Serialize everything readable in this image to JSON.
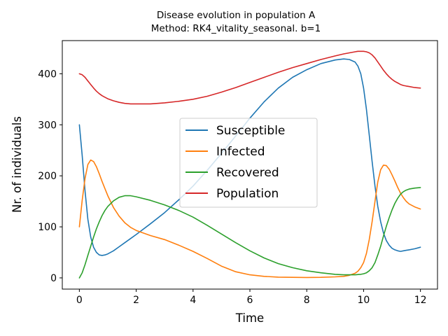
{
  "chart_data": {
    "type": "line",
    "title": "Disease evolution in population A",
    "subtitle": "Method: RK4_vitality_seasonal. b=1",
    "xlabel": "Time",
    "ylabel": "Nr. of individuals",
    "xlim": [
      -0.6,
      12.6
    ],
    "ylim": [
      -22,
      465
    ],
    "xticks": [
      0,
      2,
      4,
      6,
      8,
      10,
      12
    ],
    "yticks": [
      0,
      100,
      200,
      300,
      400
    ],
    "grid": false,
    "legend_position": "center",
    "series": [
      {
        "name": "Susceptible",
        "color": "#1f77b4",
        "x": [
          0,
          0.1,
          0.2,
          0.3,
          0.4,
          0.5,
          0.6,
          0.7,
          0.8,
          0.9,
          1.0,
          1.2,
          1.4,
          1.6,
          1.8,
          2.0,
          2.5,
          3.0,
          3.5,
          4.0,
          4.5,
          5.0,
          5.5,
          6.0,
          6.5,
          7.0,
          7.5,
          8.0,
          8.5,
          9.0,
          9.3,
          9.5,
          9.7,
          9.8,
          9.9,
          10.0,
          10.1,
          10.2,
          10.3,
          10.4,
          10.5,
          10.6,
          10.7,
          10.8,
          10.9,
          11.0,
          11.1,
          11.2,
          11.3,
          11.4,
          11.5,
          11.6,
          11.8,
          12.0
        ],
        "values": [
          300,
          240,
          170,
          115,
          80,
          60,
          50,
          45,
          44,
          45,
          47,
          53,
          61,
          69,
          77,
          85,
          106,
          128,
          153,
          180,
          211,
          244,
          278,
          313,
          345,
          372,
          393,
          408,
          420,
          427,
          429,
          428,
          423,
          415,
          400,
          372,
          330,
          280,
          228,
          180,
          140,
          110,
          88,
          73,
          64,
          58,
          55,
          53,
          52,
          53,
          54,
          55,
          57,
          60
        ]
      },
      {
        "name": "Infected",
        "color": "#ff7f0e",
        "x": [
          0,
          0.1,
          0.2,
          0.3,
          0.4,
          0.5,
          0.6,
          0.7,
          0.8,
          0.9,
          1.0,
          1.2,
          1.4,
          1.6,
          1.8,
          2.0,
          2.5,
          3.0,
          3.5,
          4.0,
          4.5,
          5.0,
          5.5,
          6.0,
          6.5,
          7.0,
          7.5,
          8.0,
          8.5,
          9.0,
          9.3,
          9.5,
          9.7,
          9.8,
          9.9,
          10.0,
          10.1,
          10.2,
          10.3,
          10.4,
          10.5,
          10.6,
          10.7,
          10.8,
          10.9,
          11.0,
          11.1,
          11.2,
          11.3,
          11.4,
          11.5,
          11.6,
          11.8,
          12.0
        ],
        "values": [
          100,
          152,
          195,
          222,
          231,
          228,
          218,
          204,
          189,
          175,
          161,
          138,
          121,
          108,
          99,
          93,
          83,
          75,
          64,
          52,
          38,
          23,
          12,
          6,
          3,
          1.5,
          1,
          0.8,
          1,
          2,
          3,
          5,
          9,
          13,
          20,
          30,
          48,
          75,
          110,
          150,
          188,
          212,
          221,
          220,
          213,
          202,
          190,
          177,
          166,
          157,
          150,
          145,
          139,
          135
        ]
      },
      {
        "name": "Recovered",
        "color": "#2ca02c",
        "x": [
          0,
          0.1,
          0.2,
          0.3,
          0.4,
          0.5,
          0.6,
          0.7,
          0.8,
          0.9,
          1.0,
          1.2,
          1.4,
          1.6,
          1.8,
          2.0,
          2.5,
          3.0,
          3.5,
          4.0,
          4.5,
          5.0,
          5.5,
          6.0,
          6.5,
          7.0,
          7.5,
          8.0,
          8.5,
          9.0,
          9.3,
          9.5,
          9.7,
          9.8,
          9.9,
          10.0,
          10.1,
          10.2,
          10.3,
          10.4,
          10.5,
          10.6,
          10.7,
          10.8,
          10.9,
          11.0,
          11.1,
          11.2,
          11.3,
          11.4,
          11.5,
          11.6,
          11.8,
          12.0
        ],
        "values": [
          0,
          10,
          26,
          44,
          62,
          80,
          96,
          110,
          122,
          132,
          140,
          151,
          158,
          161,
          161,
          159,
          152,
          143,
          132,
          119,
          103,
          86,
          69,
          53,
          39,
          28,
          20,
          14,
          10,
          7,
          6,
          6,
          6,
          6.5,
          7,
          8,
          10,
          14,
          20,
          30,
          45,
          62,
          82,
          101,
          118,
          133,
          146,
          156,
          164,
          169,
          172,
          174,
          176,
          177
        ]
      },
      {
        "name": "Population",
        "color": "#d62728",
        "x": [
          0,
          0.1,
          0.2,
          0.3,
          0.4,
          0.5,
          0.6,
          0.7,
          0.8,
          0.9,
          1.0,
          1.2,
          1.4,
          1.6,
          1.8,
          2.0,
          2.5,
          3.0,
          3.5,
          4.0,
          4.5,
          5.0,
          5.5,
          6.0,
          6.5,
          7.0,
          7.5,
          8.0,
          8.5,
          9.0,
          9.3,
          9.5,
          9.7,
          9.8,
          9.9,
          10.0,
          10.1,
          10.2,
          10.3,
          10.4,
          10.5,
          10.6,
          10.7,
          10.8,
          10.9,
          11.0,
          11.1,
          11.2,
          11.3,
          11.4,
          11.5,
          11.6,
          11.8,
          12.0
        ],
        "values": [
          400,
          398,
          393,
          386,
          379,
          372,
          366,
          361,
          357,
          354,
          351,
          347,
          344,
          342,
          341,
          341,
          341,
          343,
          346,
          350,
          356,
          364,
          373,
          383,
          393,
          403,
          412,
          420,
          428,
          435,
          439,
          441,
          443,
          444,
          444,
          444,
          443,
          441,
          437,
          431,
          423,
          415,
          407,
          400,
          394,
          389,
          385,
          382,
          379,
          377,
          376,
          375,
          373,
          372
        ]
      }
    ]
  }
}
